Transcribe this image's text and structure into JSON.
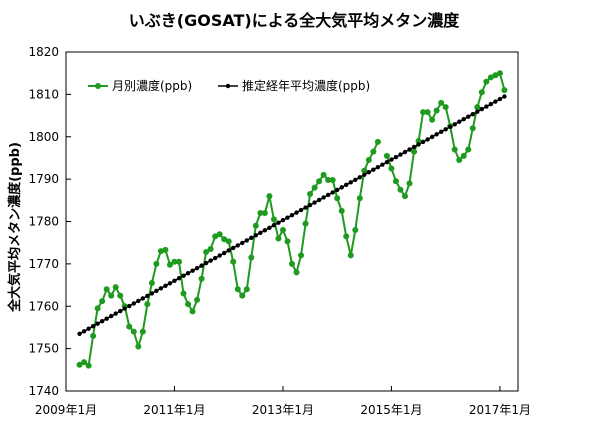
{
  "chart_data": {
    "type": "line",
    "title": "いぶき(GOSAT)による全大気平均メタン濃度",
    "xlabel": "",
    "ylabel": "全大気平均メタン濃度(ppb)",
    "ylim": [
      1740,
      1820
    ],
    "yticks": [
      1740,
      1750,
      1760,
      1770,
      1780,
      1790,
      1800,
      1810,
      1820
    ],
    "xlim": [
      "2009-01",
      "2017-05"
    ],
    "xticks": [
      {
        "x": "2009-01",
        "label": "2009年1月"
      },
      {
        "x": "2011-01",
        "label": "2011年1月"
      },
      {
        "x": "2013-01",
        "label": "2013年1月"
      },
      {
        "x": "2015-01",
        "label": "2015年1月"
      },
      {
        "x": "2017-01",
        "label": "2017年1月"
      }
    ],
    "grid": false,
    "legend_position": "top-left",
    "series": [
      {
        "name": "月別濃度(ppb)",
        "color": "#1e9a1e",
        "marker": "circle",
        "x": [
          "2009-04",
          "2009-05",
          "2009-06",
          "2009-07",
          "2009-08",
          "2009-09",
          "2009-10",
          "2009-11",
          "2009-12",
          "2010-01",
          "2010-02",
          "2010-03",
          "2010-04",
          "2010-05",
          "2010-06",
          "2010-07",
          "2010-08",
          "2010-09",
          "2010-10",
          "2010-11",
          "2010-12",
          "2011-01",
          "2011-02",
          "2011-03",
          "2011-04",
          "2011-05",
          "2011-06",
          "2011-07",
          "2011-08",
          "2011-09",
          "2011-10",
          "2011-11",
          "2011-12",
          "2012-01",
          "2012-02",
          "2012-03",
          "2012-04",
          "2012-05",
          "2012-06",
          "2012-07",
          "2012-08",
          "2012-09",
          "2012-10",
          "2012-11",
          "2012-12",
          "2013-01",
          "2013-02",
          "2013-03",
          "2013-04",
          "2013-05",
          "2013-06",
          "2013-07",
          "2013-08",
          "2013-09",
          "2013-10",
          "2013-11",
          "2013-12",
          "2014-01",
          "2014-02",
          "2014-03",
          "2014-04",
          "2014-05",
          "2014-06",
          "2014-07",
          "2014-08",
          "2014-09",
          "2014-10",
          "2014-11",
          "2014-12",
          "2015-01",
          "2015-02",
          "2015-03",
          "2015-04",
          "2015-05",
          "2015-06",
          "2015-07",
          "2015-08",
          "2015-09",
          "2015-10",
          "2015-11",
          "2015-12",
          "2016-01",
          "2016-02",
          "2016-03",
          "2016-04",
          "2016-05",
          "2016-06",
          "2016-07",
          "2016-08",
          "2016-09",
          "2016-10",
          "2016-11",
          "2016-12",
          "2017-01",
          "2017-02"
        ],
        "values": [
          1746.2,
          1746.8,
          1746.0,
          1753.0,
          1759.5,
          1761.2,
          1764.0,
          1762.5,
          1764.5,
          1762.5,
          1760.0,
          1755.2,
          1754.0,
          1750.5,
          1754.0,
          1760.5,
          1765.5,
          1770.0,
          1773.0,
          1773.3,
          1769.8,
          1770.5,
          1770.5,
          1763.0,
          1760.5,
          1758.8,
          1761.5,
          1766.5,
          1772.8,
          1773.5,
          1776.5,
          1777.0,
          1775.8,
          1775.3,
          1770.5,
          1764.0,
          1762.5,
          1764.0,
          1771.5,
          1779.0,
          1782.0,
          1782.0,
          1786.0,
          1780.5,
          1776.0,
          1778.0,
          1775.3,
          1770.0,
          1768.0,
          1772.0,
          1779.5,
          1786.5,
          1788.0,
          1789.5,
          1791.0,
          1789.8,
          1789.8,
          1785.5,
          1782.5,
          1776.5,
          1772.0,
          1778.0,
          1785.5,
          1792.0,
          1794.5,
          1796.5,
          1798.8,
          null,
          1795.5,
          1792.5,
          1789.5,
          1787.5,
          1786.0,
          1789.0,
          1796.5,
          1799.0,
          1805.8,
          1805.8,
          1804.0,
          1806.2,
          1808.0,
          1807.0,
          1802.5,
          1797.0,
          1794.5,
          1795.5,
          1797.0,
          1802.0,
          1807.0,
          1810.5,
          1813.0,
          1814.0,
          1814.5,
          1815.0,
          1811.0
        ]
      },
      {
        "name": "推定経年平均濃度(ppb)",
        "color": "#000000",
        "marker": "circle-small",
        "start": "2009-04",
        "end": "2017-02",
        "start_value": 1753.5,
        "end_value": 1809.5,
        "interval_months": 1
      }
    ]
  }
}
